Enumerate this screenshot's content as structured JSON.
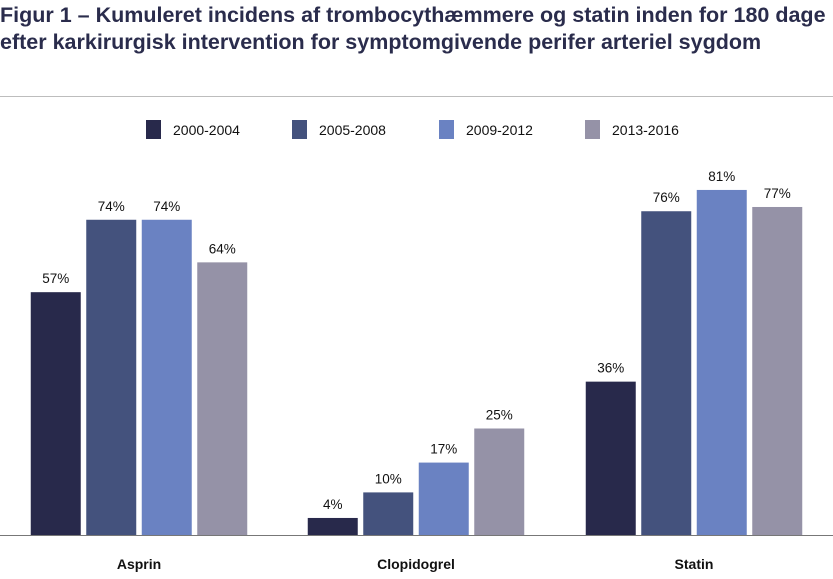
{
  "chart_data": {
    "type": "bar",
    "title": "Figur 1 – Kumuleret incidens af trombocythæmmere og statin inden for 180 dage efter karkirurgisk intervention for symptomgivende perifer arteriel sygdom",
    "categories": [
      "Asprin",
      "Clopidogrel",
      "Statin"
    ],
    "series": [
      {
        "name": "2000-2004",
        "color": "#28294b",
        "values": [
          57,
          4,
          36
        ]
      },
      {
        "name": "2005-2008",
        "color": "#44527d",
        "values": [
          74,
          10,
          76
        ]
      },
      {
        "name": "2009-2012",
        "color": "#6a82c2",
        "values": [
          74,
          17,
          81
        ]
      },
      {
        "name": "2013-2016",
        "color": "#9592a7",
        "values": [
          64,
          25,
          77
        ]
      }
    ],
    "value_suffix": "%",
    "xlabel": "",
    "ylabel": "",
    "ylim": [
      0,
      100
    ],
    "grid": false,
    "legend": "top-center"
  }
}
